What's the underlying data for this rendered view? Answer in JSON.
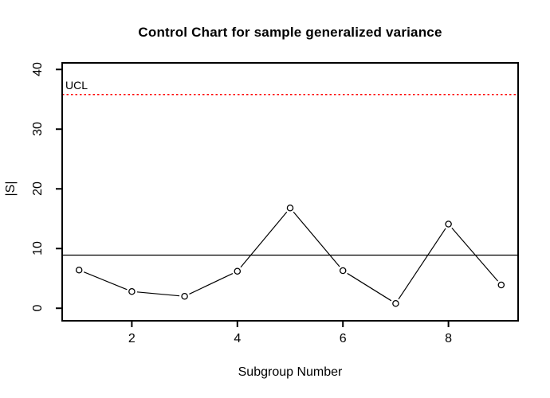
{
  "chart_data": {
    "type": "line",
    "title": "Control Chart for sample generalized variance",
    "xlabel": "Subgroup Number",
    "ylabel": "|S|",
    "x": [
      1,
      2,
      3,
      4,
      5,
      6,
      7,
      8,
      9
    ],
    "values": [
      6.4,
      2.8,
      2.0,
      6.2,
      16.8,
      6.3,
      0.8,
      14.1,
      3.9
    ],
    "center_line": 8.9,
    "ucl": 35.8,
    "ucl_label": "UCL",
    "x_ticks": [
      2,
      4,
      6,
      8
    ],
    "y_ticks": [
      0,
      10,
      20,
      30,
      40
    ],
    "xlim": [
      0.68,
      9.32
    ],
    "ylim": [
      -2.1,
      41.1
    ],
    "marker": "open-circle",
    "line_color": "#000000",
    "center_line_color": "#000000",
    "ucl_color": "#FF0000",
    "ucl_line_style": "dotted",
    "background": "#FFFFFF",
    "grid": false,
    "legend_position": "none"
  }
}
